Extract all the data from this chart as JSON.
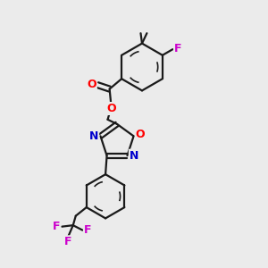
{
  "bg_color": "#ebebeb",
  "bond_color": "#1a1a1a",
  "bond_width": 1.6,
  "atom_colors": {
    "O": "#ff0000",
    "N": "#0000cd",
    "F": "#cc00cc",
    "C": "#1a1a1a"
  },
  "font_size_atom": 8.5,
  "fig_bg": "#ebebeb"
}
